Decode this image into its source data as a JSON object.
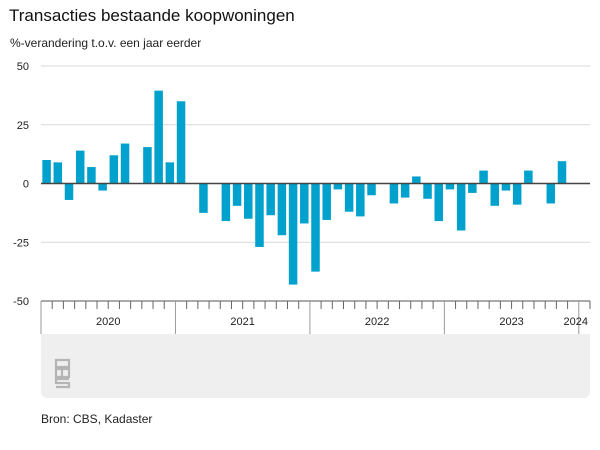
{
  "title": "Transacties bestaande koopwoningen",
  "subtitle": "%-verandering t.o.v. een jaar eerder",
  "source": "Bron: CBS, Kadaster",
  "colors": {
    "bar": "#00a1cd",
    "grid": "#d9d9d9",
    "zero": "#444444",
    "panel": "#efefef"
  },
  "logo_icon": "cbs-logo-icon",
  "chart_data": {
    "type": "bar",
    "title": "Transacties bestaande koopwoningen",
    "ylabel": "%-verandering t.o.v. een jaar eerder",
    "xlabel": "",
    "ylim": [
      -50,
      50
    ],
    "yticks": [
      50,
      25,
      0,
      -25,
      -50
    ],
    "ytick_labels": [
      "50",
      "25",
      "0",
      "-25",
      "-50"
    ],
    "grid": true,
    "year_labels": [
      "2020",
      "2021",
      "2022",
      "2023",
      "2024"
    ],
    "categories": [
      "2020-01",
      "2020-02",
      "2020-03",
      "2020-04",
      "2020-05",
      "2020-06",
      "2020-07",
      "2020-08",
      "2020-09",
      "2020-10",
      "2020-11",
      "2020-12",
      "2021-01",
      "2021-02",
      "2021-03",
      "2021-04",
      "2021-05",
      "2021-06",
      "2021-07",
      "2021-08",
      "2021-09",
      "2021-10",
      "2021-11",
      "2021-12",
      "2022-01",
      "2022-02",
      "2022-03",
      "2022-04",
      "2022-05",
      "2022-06",
      "2022-07",
      "2022-08",
      "2022-09",
      "2022-10",
      "2022-11",
      "2022-12",
      "2023-01",
      "2023-02",
      "2023-03",
      "2023-04",
      "2023-05",
      "2023-06",
      "2023-07",
      "2023-08",
      "2023-09",
      "2023-10",
      "2023-11",
      "2023-12",
      "2024-01"
    ],
    "values": [
      10,
      9,
      -7,
      14,
      7,
      -3,
      12,
      17,
      0,
      15.5,
      39.5,
      9,
      35,
      0,
      -12.5,
      0,
      -16,
      -9.5,
      -15,
      -27,
      -13.5,
      -22,
      -43,
      -17,
      -37.5,
      -15.5,
      -2.5,
      -12,
      -14,
      -5,
      0,
      -8.5,
      -6,
      3,
      -6.5,
      -16,
      -2.5,
      -20,
      -4,
      5.5,
      -9.5,
      -3,
      -9,
      5.5,
      0,
      -8.5,
      9.5,
      null,
      null
    ]
  }
}
